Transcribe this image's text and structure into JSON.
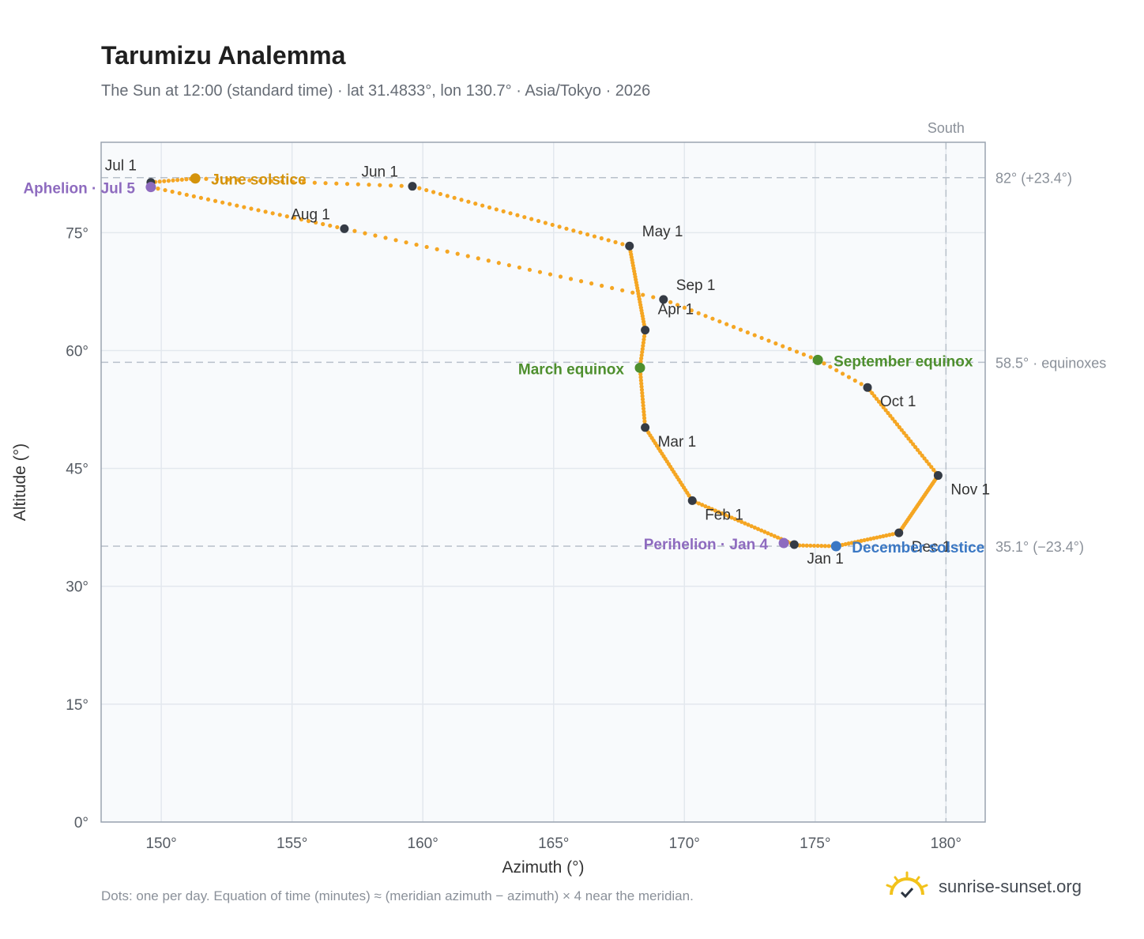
{
  "header": {
    "title": "Tarumizu Analemma",
    "subtitle": "The Sun at 12:00 (standard time) · lat 31.4833°, lon 130.7° · Asia/Tokyo · 2026"
  },
  "footer": {
    "note": "Dots: one per day. Equation of time (minutes) ≈ (meridian azimuth − azimuth) × 4 near the meridian.",
    "brand": "sunrise-sunset.org"
  },
  "chart_data": {
    "type": "scatter",
    "title": "Tarumizu Analemma",
    "xlabel": "Azimuth (°)",
    "ylabel": "Altitude (°)",
    "xlim": [
      147.7,
      181.5
    ],
    "ylim": [
      0,
      86.5
    ],
    "xticks": [
      150,
      155,
      160,
      165,
      170,
      175,
      180
    ],
    "xtick_labels": [
      "150°",
      "155°",
      "160°",
      "165°",
      "170°",
      "175°",
      "180°"
    ],
    "yticks": [
      0,
      15,
      30,
      45,
      60,
      75
    ],
    "ytick_labels": [
      "0°",
      "15°",
      "30°",
      "45°",
      "60°",
      "75°"
    ],
    "grid": true,
    "colors": {
      "path": "#f5a623",
      "month_marker": "#353b45",
      "solstice_june": "#d4930c",
      "solstice_december": "#3b78c4",
      "equinox": "#4e8f2e",
      "apsis": "#8e6bbf",
      "reference": "#b8c0ca",
      "plot_bg": "#f8fafc"
    },
    "meridian": {
      "azimuth": 180,
      "label": "South"
    },
    "reference_lines": [
      {
        "altitude": 82.0,
        "label": "82° (+23.4°)"
      },
      {
        "altitude": 58.5,
        "label": "58.5° · equinoxes"
      },
      {
        "altitude": 35.1,
        "label": "35.1° (−23.4°)"
      }
    ],
    "path_anchors": [
      {
        "day": 1,
        "az": 174.2,
        "alt": 35.3
      },
      {
        "day": 32,
        "az": 170.3,
        "alt": 40.9
      },
      {
        "day": 60,
        "az": 168.5,
        "alt": 50.2
      },
      {
        "day": 79,
        "az": 168.3,
        "alt": 57.8
      },
      {
        "day": 91,
        "az": 168.5,
        "alt": 62.6
      },
      {
        "day": 121,
        "az": 167.9,
        "alt": 73.3
      },
      {
        "day": 152,
        "az": 159.6,
        "alt": 80.9
      },
      {
        "day": 172,
        "az": 151.3,
        "alt": 81.9
      },
      {
        "day": 182,
        "az": 149.6,
        "alt": 81.4
      },
      {
        "day": 186,
        "az": 149.6,
        "alt": 80.8
      },
      {
        "day": 213,
        "az": 157.0,
        "alt": 75.5
      },
      {
        "day": 244,
        "az": 169.2,
        "alt": 66.5
      },
      {
        "day": 266,
        "az": 175.1,
        "alt": 58.8
      },
      {
        "day": 274,
        "az": 177.0,
        "alt": 55.3
      },
      {
        "day": 305,
        "az": 179.7,
        "alt": 44.1
      },
      {
        "day": 335,
        "az": 178.2,
        "alt": 36.8
      },
      {
        "day": 355,
        "az": 175.8,
        "alt": 35.1
      },
      {
        "day": 365,
        "az": 174.4,
        "alt": 35.2
      }
    ],
    "month_markers": [
      {
        "label": "Jan 1",
        "az": 174.2,
        "alt": 35.3
      },
      {
        "label": "Feb 1",
        "az": 170.3,
        "alt": 40.9
      },
      {
        "label": "Mar 1",
        "az": 168.5,
        "alt": 50.2
      },
      {
        "label": "Apr 1",
        "az": 168.5,
        "alt": 62.6
      },
      {
        "label": "May 1",
        "az": 167.9,
        "alt": 73.3
      },
      {
        "label": "Jun 1",
        "az": 159.6,
        "alt": 80.9
      },
      {
        "label": "Jul 1",
        "az": 149.6,
        "alt": 81.4
      },
      {
        "label": "Aug 1",
        "az": 157.0,
        "alt": 75.5
      },
      {
        "label": "Sep 1",
        "az": 169.2,
        "alt": 66.5
      },
      {
        "label": "Oct 1",
        "az": 177.0,
        "alt": 55.3
      },
      {
        "label": "Nov 1",
        "az": 179.7,
        "alt": 44.1
      },
      {
        "label": "Dec 1",
        "az": 178.2,
        "alt": 36.8
      }
    ],
    "events": [
      {
        "label": "June solstice",
        "az": 151.3,
        "alt": 81.9,
        "kind": "solstice_june"
      },
      {
        "label": "December solstice",
        "az": 175.8,
        "alt": 35.1,
        "kind": "solstice_december"
      },
      {
        "label": "March equinox",
        "az": 168.3,
        "alt": 57.8,
        "kind": "equinox"
      },
      {
        "label": "September equinox",
        "az": 175.1,
        "alt": 58.8,
        "kind": "equinox"
      },
      {
        "label": "Aphelion · Jul 5",
        "az": 149.6,
        "alt": 80.8,
        "kind": "apsis"
      },
      {
        "label": "Perihelion · Jan 4",
        "az": 173.8,
        "alt": 35.5,
        "kind": "apsis"
      }
    ]
  }
}
